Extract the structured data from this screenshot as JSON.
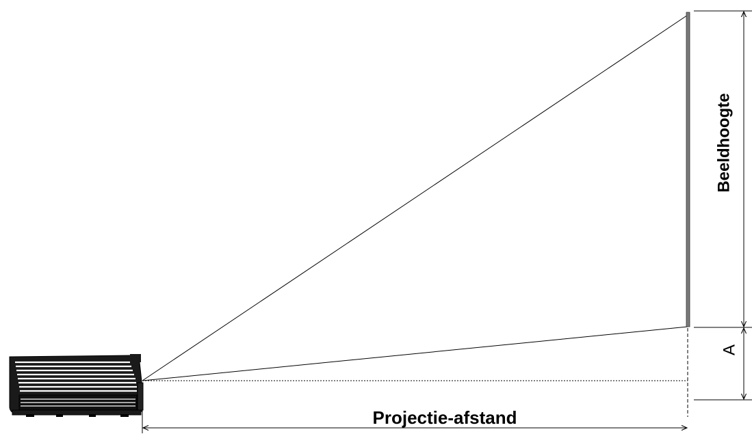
{
  "labels": {
    "image_height": "Beeldhoogte",
    "offset": "A",
    "projection_distance": "Projectie-afstand"
  },
  "colors": {
    "line": "#000000",
    "screen": "#7a7a7a",
    "projector_body": "#1a1a1a",
    "projector_vent": "#ffffff"
  },
  "icons": {
    "projector": "projector-icon",
    "screen": "projection-screen"
  }
}
